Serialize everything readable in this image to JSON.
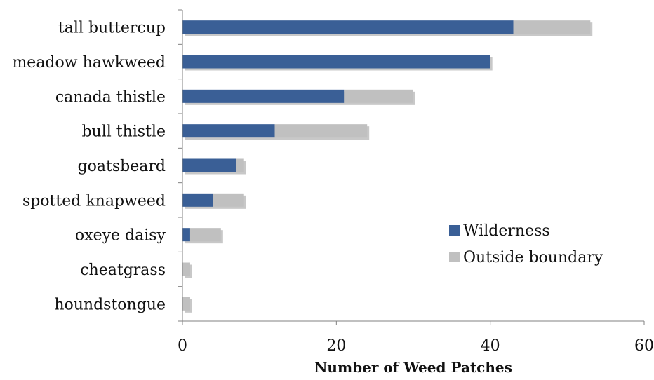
{
  "chart_data": {
    "type": "bar",
    "orientation": "horizontal",
    "stacked": true,
    "categories": [
      "tall buttercup",
      "meadow hawkweed",
      "canada thistle",
      "bull thistle",
      "goatsbeard",
      "spotted knapweed",
      "oxeye daisy",
      "cheatgrass",
      "houndstongue"
    ],
    "series": [
      {
        "name": "Wilderness",
        "color": "#3a5f96",
        "values": [
          43,
          40,
          21,
          12,
          7,
          4,
          1,
          0,
          0
        ]
      },
      {
        "name": "Outside boundary",
        "color": "#c0c0c0",
        "values": [
          10,
          0,
          9,
          12,
          1,
          4,
          4,
          1,
          1
        ]
      }
    ],
    "title": "",
    "xlabel": "Number of Weed Patches",
    "ylabel": "",
    "xlim": [
      0,
      60
    ],
    "xticks": [
      0,
      20,
      40,
      60
    ],
    "grid": false,
    "legend_position": "lower-right"
  }
}
